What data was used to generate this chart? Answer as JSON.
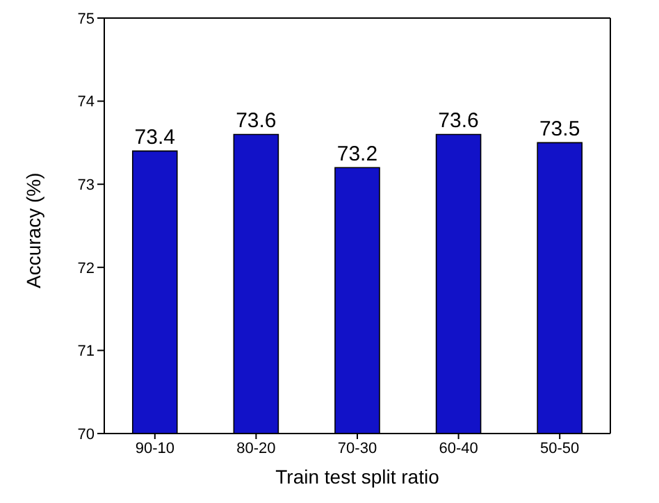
{
  "chart_data": {
    "type": "bar",
    "xlabel": "Train test split ratio",
    "ylabel": "Accuracy (%)",
    "categories": [
      "90-10",
      "80-20",
      "70-30",
      "60-40",
      "50-50"
    ],
    "values": [
      73.4,
      73.6,
      73.2,
      73.6,
      73.5
    ],
    "color": "#1212c8",
    "ylim": [
      70,
      75
    ],
    "yticks": [
      70,
      71,
      72,
      73,
      74,
      75
    ],
    "grid": false,
    "data_labels": true
  }
}
